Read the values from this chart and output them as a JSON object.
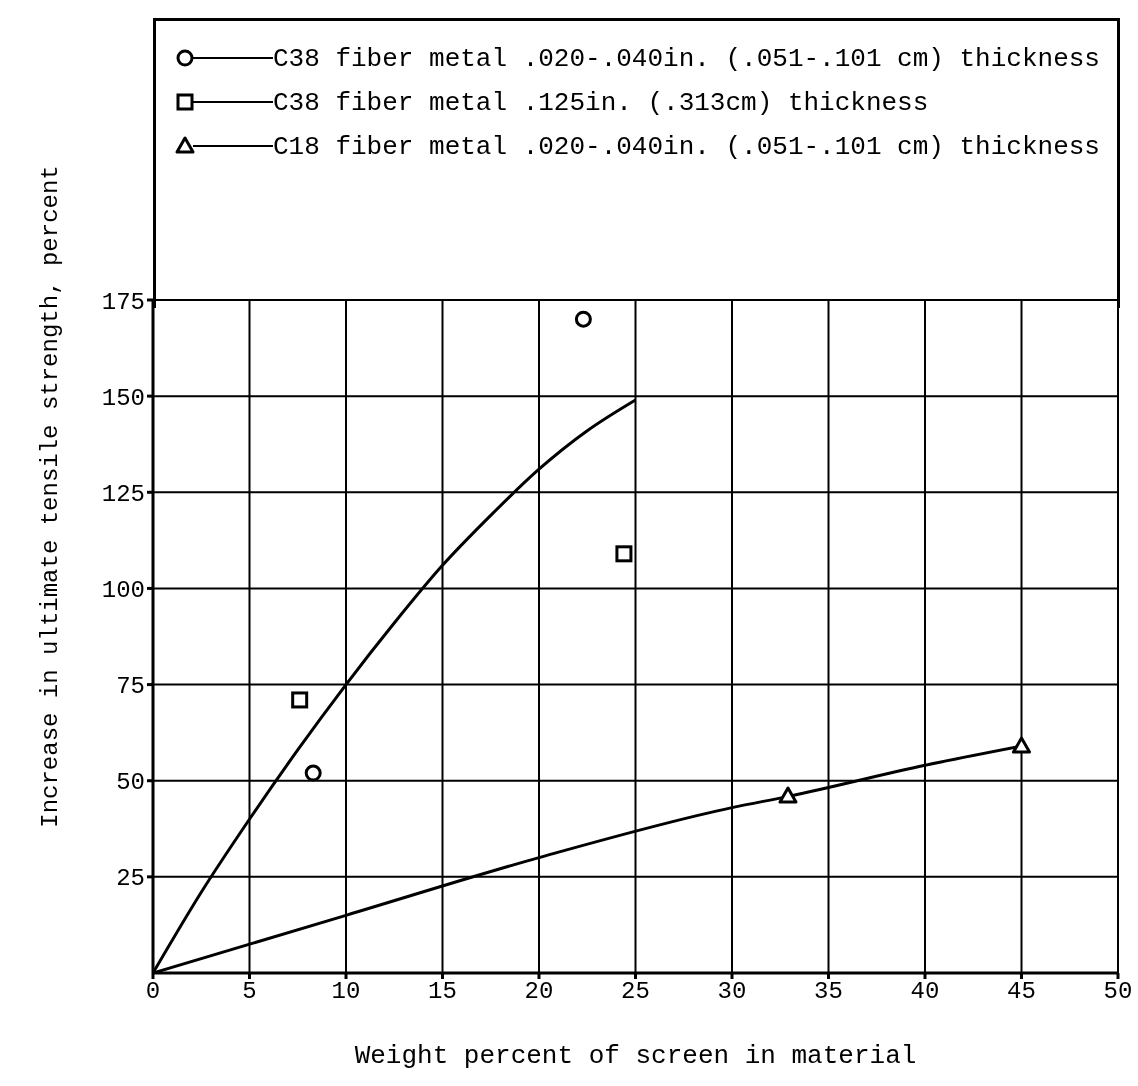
{
  "chart_data": {
    "type": "scatter",
    "xlabel": "Weight percent of screen in material",
    "ylabel": "Increase in ultimate tensile strength, percent",
    "xlim": [
      0,
      50
    ],
    "xticks": [
      0,
      5,
      10,
      15,
      20,
      25,
      30,
      35,
      40,
      45,
      50
    ],
    "ylim": [
      0,
      175
    ],
    "yticks": [
      25,
      50,
      75,
      100,
      125,
      150,
      175
    ],
    "grid": true,
    "legend": "top",
    "series": [
      {
        "name": "C38 fiber metal .020-.040in. (.051-.101 cm) thickness",
        "marker": "circle",
        "color": "#000000",
        "x": [
          8.3,
          22.3
        ],
        "values": [
          52,
          170
        ]
      },
      {
        "name": "C38 fiber metal .125in. (.313cm) thickness",
        "marker": "square",
        "color": "#000000",
        "x": [
          7.6,
          24.4
        ],
        "values": [
          71,
          109
        ]
      },
      {
        "name": "C18 fiber metal .020-.040in. (.051-.101 cm) thickness",
        "marker": "triangle",
        "color": "#000000",
        "x": [
          32.9,
          45
        ],
        "values": [
          46,
          59
        ]
      },
      {
        "type": "line",
        "marker": "none",
        "line_style": "solid",
        "color": "#000000",
        "x": [
          0,
          2.5,
          5,
          7.5,
          10,
          12.5,
          15,
          17.5,
          20,
          22.5,
          25
        ],
        "values": [
          0,
          21,
          40,
          58,
          75,
          91,
          106,
          119,
          131,
          141,
          149
        ]
      },
      {
        "type": "line",
        "marker": "none",
        "line_style": "solid",
        "color": "#000000",
        "x": [
          0,
          10,
          20,
          30,
          33,
          40,
          45
        ],
        "values": [
          0,
          15,
          30,
          43,
          46,
          54,
          59
        ]
      }
    ]
  }
}
